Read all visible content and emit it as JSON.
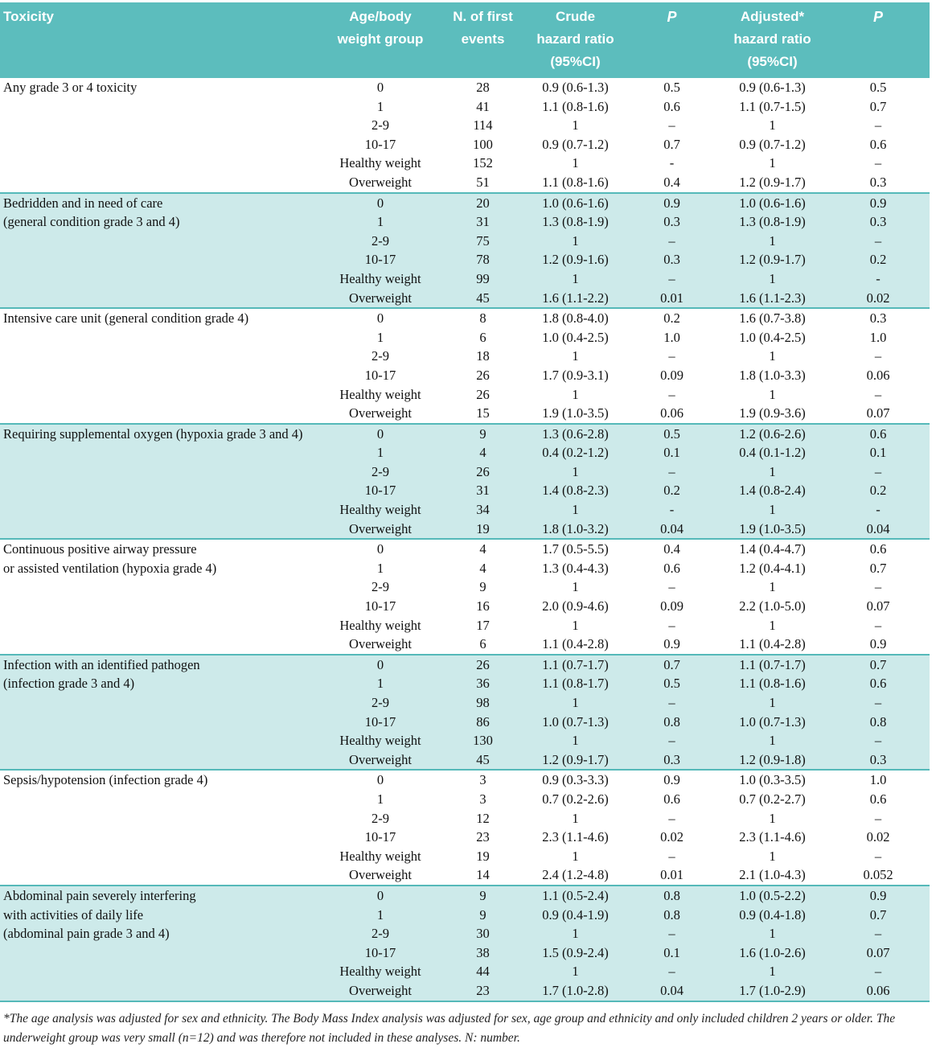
{
  "colors": {
    "header_bg": "#5cbdbd",
    "band_bg": "#cdeaea",
    "rule": "#55b9b9"
  },
  "table": {
    "columns": [
      {
        "label": "Toxicity"
      },
      {
        "label": "Age/body\nweight group"
      },
      {
        "label": "N. of first\nevents"
      },
      {
        "label": "Crude\nhazard ratio\n(95%CI)"
      },
      {
        "label": "P"
      },
      {
        "label": "Adjusted*\nhazard ratio\n(95%CI)"
      },
      {
        "label": "P"
      }
    ],
    "sections": [
      {
        "label": "Any grade 3 or 4 toxicity",
        "shaded": false,
        "rows": [
          [
            "0",
            "28",
            "0.9 (0.6-1.3)",
            "0.5",
            "0.9 (0.6-1.3)",
            "0.5"
          ],
          [
            "1",
            "41",
            "1.1 (0.8-1.6)",
            "0.6",
            "1.1 (0.7-1.5)",
            "0.7"
          ],
          [
            "2-9",
            "114",
            "1",
            "–",
            "1",
            "–"
          ],
          [
            "10-17",
            "100",
            "0.9 (0.7-1.2)",
            "0.7",
            "0.9 (0.7-1.2)",
            "0.6"
          ],
          [
            "Healthy weight",
            "152",
            "1",
            "-",
            "1",
            "–"
          ],
          [
            "Overweight",
            "51",
            "1.1 (0.8-1.6)",
            "0.4",
            "1.2 (0.9-1.7)",
            "0.3"
          ]
        ]
      },
      {
        "label": "Bedridden and in need of care\n(general condition grade 3 and 4)",
        "shaded": true,
        "rows": [
          [
            "0",
            "20",
            "1.0 (0.6-1.6)",
            "0.9",
            "1.0 (0.6-1.6)",
            "0.9"
          ],
          [
            "1",
            "31",
            "1.3 (0.8-1.9)",
            "0.3",
            "1.3 (0.8-1.9)",
            "0.3"
          ],
          [
            "2-9",
            "75",
            "1",
            "–",
            "1",
            "–"
          ],
          [
            "10-17",
            "78",
            "1.2 (0.9-1.6)",
            "0.3",
            "1.2 (0.9-1.7)",
            "0.2"
          ],
          [
            "Healthy weight",
            "99",
            "1",
            "–",
            "1",
            "-"
          ],
          [
            "Overweight",
            "45",
            "1.6 (1.1-2.2)",
            "0.01",
            "1.6 (1.1-2.3)",
            "0.02"
          ]
        ]
      },
      {
        "label": "Intensive care unit (general condition grade 4)",
        "shaded": false,
        "rows": [
          [
            "0",
            "8",
            "1.8 (0.8-4.0)",
            "0.2",
            "1.6 (0.7-3.8)",
            "0.3"
          ],
          [
            "1",
            "6",
            "1.0 (0.4-2.5)",
            "1.0",
            "1.0 (0.4-2.5)",
            "1.0"
          ],
          [
            "2-9",
            "18",
            "1",
            "–",
            "1",
            "–"
          ],
          [
            "10-17",
            "26",
            "1.7 (0.9-3.1)",
            "0.09",
            "1.8 (1.0-3.3)",
            "0.06"
          ],
          [
            "Healthy weight",
            "26",
            "1",
            "–",
            "1",
            "–"
          ],
          [
            "Overweight",
            "15",
            "1.9 (1.0-3.5)",
            "0.06",
            "1.9 (0.9-3.6)",
            "0.07"
          ]
        ]
      },
      {
        "label": "Requiring supplemental oxygen (hypoxia grade 3 and 4)",
        "shaded": true,
        "rows": [
          [
            "0",
            "9",
            "1.3 (0.6-2.8)",
            "0.5",
            "1.2 (0.6-2.6)",
            "0.6"
          ],
          [
            "1",
            "4",
            "0.4 (0.2-1.2)",
            "0.1",
            "0.4 (0.1-1.2)",
            "0.1"
          ],
          [
            "2-9",
            "26",
            "1",
            "–",
            "1",
            "–"
          ],
          [
            "10-17",
            "31",
            "1.4 (0.8-2.3)",
            "0.2",
            "1.4 (0.8-2.4)",
            "0.2"
          ],
          [
            "Healthy weight",
            "34",
            "1",
            "-",
            "1",
            "-"
          ],
          [
            "Overweight",
            "19",
            "1.8 (1.0-3.2)",
            "0.04",
            "1.9 (1.0-3.5)",
            "0.04"
          ]
        ]
      },
      {
        "label": "Continuous positive airway pressure\nor assisted ventilation (hypoxia grade 4)",
        "shaded": false,
        "rows": [
          [
            "0",
            "4",
            "1.7 (0.5-5.5)",
            "0.4",
            "1.4 (0.4-4.7)",
            "0.6"
          ],
          [
            "1",
            "4",
            "1.3 (0.4-4.3)",
            "0.6",
            "1.2 (0.4-4.1)",
            "0.7"
          ],
          [
            "2-9",
            "9",
            "1",
            "–",
            "1",
            "–"
          ],
          [
            "10-17",
            "16",
            "2.0 (0.9-4.6)",
            "0.09",
            "2.2 (1.0-5.0)",
            "0.07"
          ],
          [
            "Healthy weight",
            "17",
            "1",
            "–",
            "1",
            "–"
          ],
          [
            "Overweight",
            "6",
            "1.1 (0.4-2.8)",
            "0.9",
            "1.1 (0.4-2.8)",
            "0.9"
          ]
        ]
      },
      {
        "label": "Infection with an identified pathogen\n(infection grade 3 and 4)",
        "shaded": true,
        "rows": [
          [
            "0",
            "26",
            "1.1 (0.7-1.7)",
            "0.7",
            "1.1 (0.7-1.7)",
            "0.7"
          ],
          [
            "1",
            "36",
            "1.1 (0.8-1.7)",
            "0.5",
            "1.1 (0.8-1.6)",
            "0.6"
          ],
          [
            "2-9",
            "98",
            "1",
            "–",
            "1",
            "–"
          ],
          [
            "10-17",
            "86",
            "1.0 (0.7-1.3)",
            "0.8",
            "1.0 (0.7-1.3)",
            "0.8"
          ],
          [
            "Healthy weight",
            "130",
            "1",
            "–",
            "1",
            "–"
          ],
          [
            "Overweight",
            "45",
            "1.2 (0.9-1.7)",
            "0.3",
            "1.2 (0.9-1.8)",
            "0.3"
          ]
        ]
      },
      {
        "label": "Sepsis/hypotension (infection grade 4)",
        "shaded": false,
        "rows": [
          [
            "0",
            "3",
            "0.9 (0.3-3.3)",
            "0.9",
            "1.0 (0.3-3.5)",
            "1.0"
          ],
          [
            "1",
            "3",
            "0.7 (0.2-2.6)",
            "0.6",
            "0.7 (0.2-2.7)",
            "0.6"
          ],
          [
            "2-9",
            "12",
            "1",
            "–",
            "1",
            "–"
          ],
          [
            "10-17",
            "23",
            "2.3 (1.1-4.6)",
            "0.02",
            "2.3 (1.1-4.6)",
            "0.02"
          ],
          [
            "Healthy weight",
            "19",
            "1",
            "–",
            "1",
            "–"
          ],
          [
            "Overweight",
            "14",
            "2.4 (1.2-4.8)",
            "0.01",
            "2.1 (1.0-4.3)",
            "0.052"
          ]
        ]
      },
      {
        "label": "Abdominal pain severely interfering\nwith activities of daily life\n(abdominal pain grade 3 and 4)",
        "shaded": true,
        "rows": [
          [
            "0",
            "9",
            "1.1 (0.5-2.4)",
            "0.8",
            "1.0 (0.5-2.2)",
            "0.9"
          ],
          [
            "1",
            "9",
            "0.9 (0.4-1.9)",
            "0.8",
            "0.9 (0.4-1.8)",
            "0.7"
          ],
          [
            "2-9",
            "30",
            "1",
            "–",
            "1",
            "–"
          ],
          [
            "10-17",
            "38",
            "1.5 (0.9-2.4)",
            "0.1",
            "1.6 (1.0-2.6)",
            "0.07"
          ],
          [
            "Healthy weight",
            "44",
            "1",
            "–",
            "1",
            "–"
          ],
          [
            "Overweight",
            "23",
            "1.7 (1.0-2.8)",
            "0.04",
            "1.7 (1.0-2.9)",
            "0.06"
          ]
        ]
      }
    ]
  },
  "footnote": "*The age analysis was adjusted for sex and ethnicity. The Body Mass Index analysis was adjusted for sex, age group and ethnicity and only included children 2 years or older. The underweight group was very small (n=12) and was therefore not included in these analyses. N: number."
}
